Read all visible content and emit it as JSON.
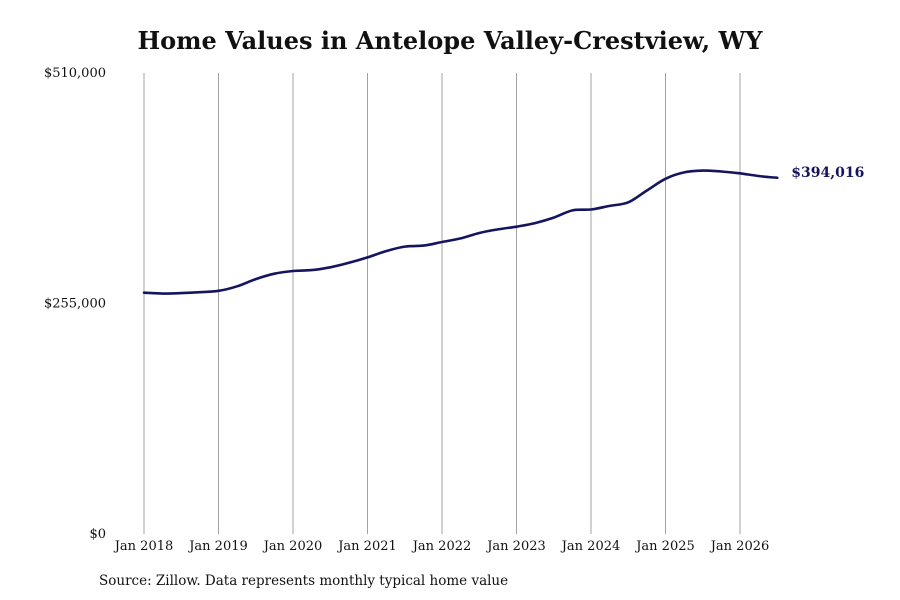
{
  "chart_data": {
    "type": "line",
    "title": "Home Values in Antelope Valley-Crestview, WY",
    "xlabel": "",
    "ylabel": "",
    "ylim": [
      0,
      510000
    ],
    "y_ticks": [
      {
        "value": 0,
        "label": "$0"
      },
      {
        "value": 255000,
        "label": "$255,000"
      },
      {
        "value": 510000,
        "label": "$510,000"
      }
    ],
    "x_ticks": [
      {
        "value": "2018-01",
        "label": "Jan 2018"
      },
      {
        "value": "2019-01",
        "label": "Jan 2019"
      },
      {
        "value": "2020-01",
        "label": "Jan 2020"
      },
      {
        "value": "2021-01",
        "label": "Jan 2021"
      },
      {
        "value": "2022-01",
        "label": "Jan 2022"
      },
      {
        "value": "2023-01",
        "label": "Jan 2023"
      },
      {
        "value": "2024-01",
        "label": "Jan 2024"
      },
      {
        "value": "2025-01",
        "label": "Jan 2025"
      },
      {
        "value": "2026-01",
        "label": "Jan 2026"
      }
    ],
    "grid": {
      "vertical": true,
      "horizontal": false
    },
    "line_color": "#14145f",
    "grid_color": "#999999",
    "end_label": "$394,016",
    "series": [
      {
        "points": [
          [
            "2018-01",
            267000
          ],
          [
            "2018-04",
            266000
          ],
          [
            "2018-07",
            266500
          ],
          [
            "2018-10",
            267500
          ],
          [
            "2019-01",
            269000
          ],
          [
            "2019-04",
            274000
          ],
          [
            "2019-07",
            282000
          ],
          [
            "2019-10",
            288000
          ],
          [
            "2020-01",
            291000
          ],
          [
            "2020-04",
            292000
          ],
          [
            "2020-07",
            295000
          ],
          [
            "2020-10",
            300000
          ],
          [
            "2021-01",
            306000
          ],
          [
            "2021-04",
            313000
          ],
          [
            "2021-07",
            318000
          ],
          [
            "2021-10",
            319000
          ],
          [
            "2022-01",
            323000
          ],
          [
            "2022-04",
            327000
          ],
          [
            "2022-07",
            333000
          ],
          [
            "2022-10",
            337000
          ],
          [
            "2023-01",
            340000
          ],
          [
            "2023-04",
            344000
          ],
          [
            "2023-07",
            350000
          ],
          [
            "2023-10",
            358000
          ],
          [
            "2024-01",
            359000
          ],
          [
            "2024-04",
            363000
          ],
          [
            "2024-07",
            367000
          ],
          [
            "2024-10",
            380000
          ],
          [
            "2025-01",
            393000
          ],
          [
            "2025-04",
            400000
          ],
          [
            "2025-07",
            402000
          ],
          [
            "2025-10",
            401000
          ],
          [
            "2026-01",
            399000
          ],
          [
            "2026-04",
            396000
          ],
          [
            "2026-07",
            394016
          ]
        ]
      }
    ]
  }
}
